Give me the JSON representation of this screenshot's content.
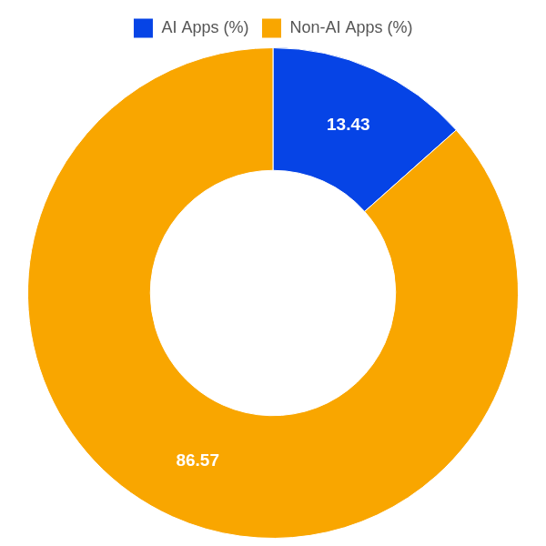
{
  "chart_data": {
    "type": "doughnut",
    "categories": [
      "AI Apps (%)",
      "Non-AI Apps (%)"
    ],
    "values": [
      13.43,
      86.57
    ],
    "colors": [
      "#0644e6",
      "#f9a600"
    ],
    "legend": "top",
    "data_labels": true
  }
}
